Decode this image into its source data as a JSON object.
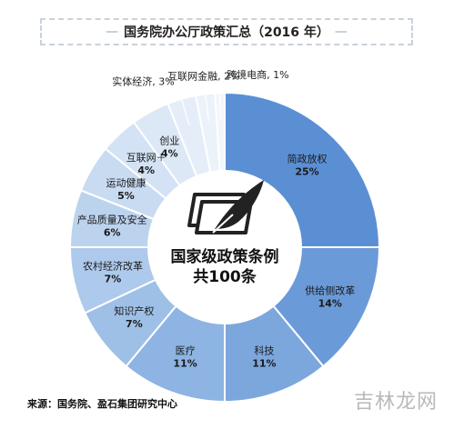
{
  "chart_data": {
    "type": "pie",
    "title": "国务院办公厅政策汇总（2016 年）",
    "center_label_line1": "国家级政策条例",
    "center_label_line2": "共100条",
    "slices": [
      {
        "name": "简政放权",
        "value": 25,
        "label": "25%",
        "color": "#5b8fd4"
      },
      {
        "name": "供给侧改革",
        "value": 14,
        "label": "14%",
        "color": "#6b9ad8"
      },
      {
        "name": "科技",
        "value": 11,
        "label": "11%",
        "color": "#7ca7dd"
      },
      {
        "name": "医疗",
        "value": 11,
        "label": "11%",
        "color": "#8db4e2"
      },
      {
        "name": "知识产权",
        "value": 7,
        "label": "7%",
        "color": "#9ec0e7"
      },
      {
        "name": "农村经济改革",
        "value": 7,
        "label": "7%",
        "color": "#adc9eb"
      },
      {
        "name": "产品质量及安全",
        "value": 6,
        "label": "6%",
        "color": "#bcd3ee"
      },
      {
        "name": "运动健康",
        "value": 5,
        "label": "5%",
        "color": "#c8dbf1"
      },
      {
        "name": "互联网＋",
        "value": 4,
        "label": "4%",
        "color": "#d3e2f4"
      },
      {
        "name": "创业",
        "value": 4,
        "label": "4%",
        "color": "#dce8f6"
      },
      {
        "name": "实体经济",
        "value": 3,
        "label": "3%",
        "color": "#e5eef8"
      },
      {
        "name": "互联网金融",
        "value": 2,
        "label": "2%",
        "color": "#ecf2fa"
      },
      {
        "name": "跨境电商",
        "value": 1,
        "label": "1%",
        "color": "#f2f6fb"
      }
    ]
  },
  "title_prefix": "国务院办公厅政策汇总",
  "title_suffix": "（2016 年）",
  "source": "来源：国务院、盈石集团研究中心",
  "watermark": "吉林龙网",
  "icon": "document-feather-icon"
}
